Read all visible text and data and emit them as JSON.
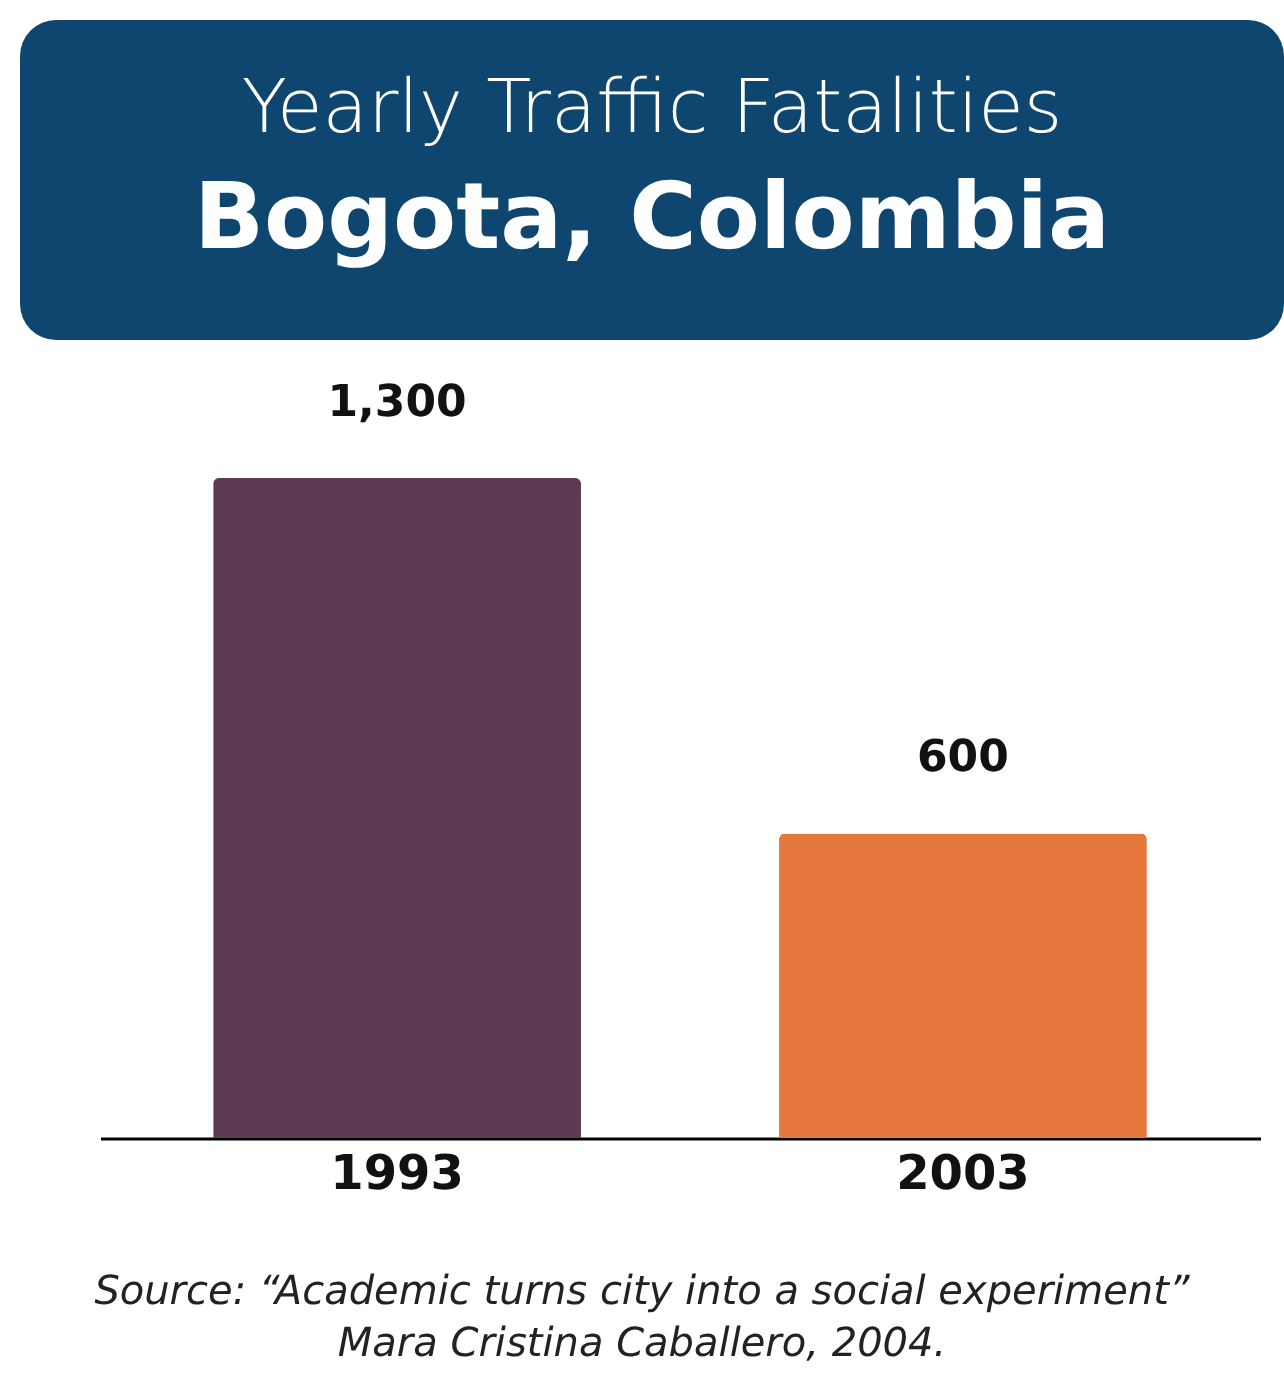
{
  "chart_data": {
    "type": "bar",
    "title": "Yearly Traffic Fatalities",
    "subtitle": "Bogota, Colombia",
    "categories": [
      "1993",
      "2003"
    ],
    "values": [
      1300,
      600
    ],
    "colors": [
      "#5c3a51",
      "#e5773d"
    ],
    "value_labels": [
      "1,300",
      "600"
    ],
    "annotations": [
      "Source: “Academic turns city into a social experiment”",
      "Mara Cristina Caballero, 2004."
    ]
  }
}
